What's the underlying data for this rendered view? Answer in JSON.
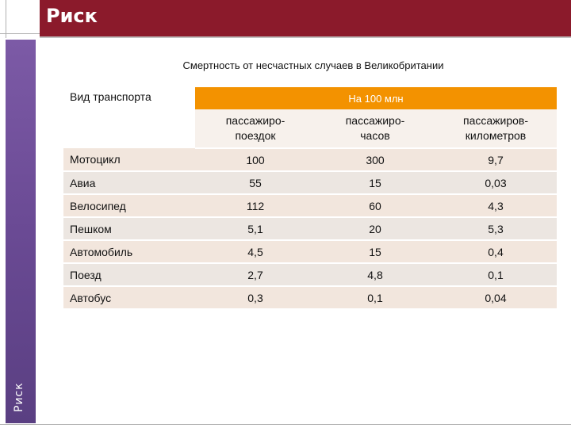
{
  "header": {
    "title": "Риск"
  },
  "sidebar": {
    "label": "Риск"
  },
  "table": {
    "caption": "Смертность от несчастных случаев в Великобритании",
    "group_header": "На 100 млн",
    "first_col_header": "Вид транспорта",
    "columns": [
      {
        "line1": "пассажиро-",
        "line2": "поездок"
      },
      {
        "line1": "пассажиро-",
        "line2": "часов"
      },
      {
        "line1": "пассажиров-",
        "line2": "километров"
      }
    ],
    "rows": [
      {
        "name": "Мотоцикл",
        "values": [
          "100",
          "300",
          "9,7"
        ]
      },
      {
        "name": "Авиа",
        "values": [
          "55",
          "15",
          "0,03"
        ]
      },
      {
        "name": "Велосипед",
        "values": [
          "112",
          "60",
          "4,3"
        ]
      },
      {
        "name": "Пешком",
        "values": [
          "5,1",
          "20",
          "5,3"
        ]
      },
      {
        "name": "Автомобиль",
        "values": [
          "4,5",
          "15",
          "0,4"
        ]
      },
      {
        "name": "Поезд",
        "values": [
          "2,7",
          "4,8",
          "0,1"
        ]
      },
      {
        "name": "Автобус",
        "values": [
          "0,3",
          "0,1",
          "0,04"
        ]
      }
    ]
  }
}
